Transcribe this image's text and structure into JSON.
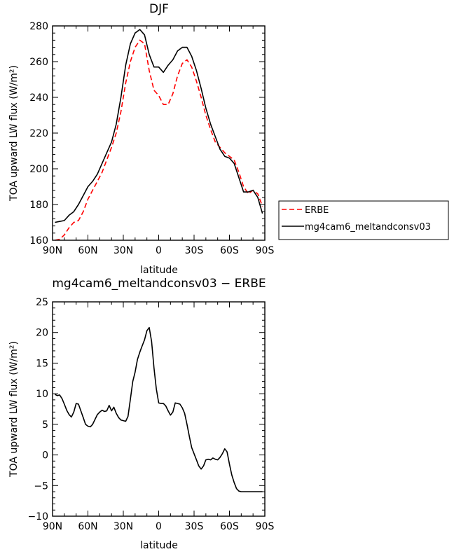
{
  "chart_data": [
    {
      "type": "line",
      "title": "DJF",
      "xlabel": "latitude",
      "ylabel": "TOA upward LW flux (W/m²)",
      "xlim": [
        90,
        -90
      ],
      "ylim": [
        160,
        280
      ],
      "xticks": [
        90,
        60,
        30,
        0,
        -30,
        -60,
        -90
      ],
      "xtick_labels": [
        "90N",
        "60N",
        "30N",
        "0",
        "30S",
        "60S",
        "90S"
      ],
      "yticks": [
        160,
        180,
        200,
        220,
        240,
        260,
        280
      ],
      "ytick_labels": [
        "160",
        "180",
        "200",
        "220",
        "240",
        "260",
        "280"
      ],
      "grid": false,
      "legend_position": "right",
      "x": [
        88,
        84,
        80,
        76,
        72,
        68,
        64,
        60,
        56,
        52,
        48,
        44,
        40,
        36,
        32,
        28,
        24,
        20,
        16,
        12,
        8,
        4,
        0,
        -4,
        -8,
        -12,
        -16,
        -20,
        -24,
        -28,
        -32,
        -36,
        -40,
        -44,
        -48,
        -52,
        -56,
        -60,
        -64,
        -68,
        -72,
        -76,
        -80,
        -84,
        -88
      ],
      "series": [
        {
          "name": "ERBE",
          "color": "#ff0000",
          "dash": "dashed",
          "values": [
            160,
            160.5,
            163,
            167,
            170,
            171,
            176,
            183,
            188,
            193,
            198,
            205,
            212,
            220,
            232,
            248,
            260,
            268,
            272,
            270,
            255,
            244,
            241,
            236,
            236,
            242,
            252,
            259,
            261,
            257,
            249,
            240,
            230,
            222,
            215,
            212,
            209,
            207,
            205,
            198,
            190,
            186,
            188,
            186,
            179
          ]
        },
        {
          "name": "mg4cam6_meltandconsv03",
          "color": "#000000",
          "dash": "solid",
          "values": [
            170,
            170.5,
            171,
            174,
            176,
            180,
            185,
            190,
            193,
            197,
            203,
            209,
            215,
            225,
            240,
            258,
            270,
            276,
            278,
            275,
            264,
            257,
            257,
            254,
            258,
            261,
            266,
            268,
            268,
            263,
            255,
            245,
            234,
            225,
            218,
            211,
            207,
            206,
            203,
            195,
            187,
            187,
            188,
            184,
            175
          ]
        }
      ]
    },
    {
      "type": "line",
      "title": "mg4cam6_meltandconsv03 − ERBE",
      "xlabel": "latitude",
      "ylabel": "TOA upward LW flux (W/m²)",
      "xlim": [
        90,
        -90
      ],
      "ylim": [
        -10,
        25
      ],
      "xticks": [
        90,
        60,
        30,
        0,
        -30,
        -60,
        -90
      ],
      "xtick_labels": [
        "90N",
        "60N",
        "30N",
        "0",
        "30S",
        "60S",
        "90S"
      ],
      "yticks": [
        -10,
        -5,
        0,
        5,
        10,
        15,
        20,
        25
      ],
      "ytick_labels": [
        "−10",
        "−5",
        "0",
        "5",
        "10",
        "15",
        "20",
        "25"
      ],
      "grid": false,
      "series": [
        {
          "color": "#000000",
          "x": [
            88,
            86,
            84,
            82,
            80,
            78,
            76,
            74,
            72,
            70,
            68,
            66,
            64,
            62,
            60,
            58,
            56,
            54,
            52,
            50,
            48,
            46,
            44,
            42,
            40,
            38,
            36,
            34,
            32,
            30,
            28,
            26,
            24,
            22,
            20,
            18,
            16,
            14,
            12,
            10,
            8,
            6,
            4,
            2,
            0,
            -2,
            -4,
            -6,
            -8,
            -10,
            -12,
            -14,
            -16,
            -18,
            -20,
            -22,
            -24,
            -26,
            -28,
            -30,
            -32,
            -34,
            -36,
            -38,
            -40,
            -42,
            -44,
            -46,
            -48,
            -50,
            -52,
            -54,
            -56,
            -58,
            -60,
            -62,
            -64,
            -66,
            -68,
            -70,
            -72,
            -74,
            -76,
            -78,
            -80,
            -82,
            -84,
            -86,
            -88
          ],
          "values": [
            9.9,
            9.7,
            9.8,
            9.2,
            8.3,
            7.3,
            6.6,
            6.2,
            7.0,
            8.4,
            8.3,
            7.2,
            6.1,
            5.0,
            4.7,
            4.6,
            5.0,
            5.8,
            6.6,
            7.0,
            7.3,
            7.1,
            7.2,
            8.1,
            7.2,
            7.8,
            6.8,
            6.1,
            5.7,
            5.6,
            5.5,
            6.3,
            9.1,
            12.0,
            13.5,
            15.6,
            16.8,
            17.8,
            18.8,
            20.3,
            20.8,
            18.5,
            14.2,
            10.8,
            8.5,
            8.4,
            8.4,
            8.0,
            7.2,
            6.5,
            7.0,
            8.5,
            8.4,
            8.3,
            7.7,
            6.8,
            5.0,
            3.0,
            1.2,
            0.2,
            -0.8,
            -1.8,
            -2.3,
            -1.8,
            -0.8,
            -0.7,
            -0.8,
            -0.5,
            -0.7,
            -0.8,
            -0.4,
            0.2,
            1.0,
            0.5,
            -1.5,
            -3.3,
            -4.5,
            -5.5,
            -5.9,
            -6.0,
            -6.0,
            -6.0,
            -6.0,
            -6.0,
            -6.0,
            -6.0,
            -6.0,
            -6.0,
            -6.0
          ]
        }
      ]
    }
  ]
}
